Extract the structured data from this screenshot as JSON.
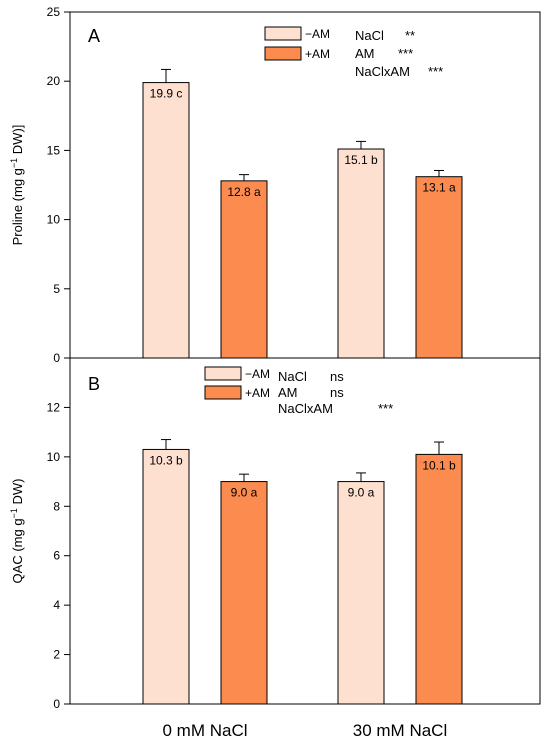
{
  "colors": {
    "minus_am": "#fde0d0",
    "plus_am": "#fb8b4f",
    "stroke": "#000000"
  },
  "chart_data": [
    {
      "type": "bar",
      "panel_label": "A",
      "ylabel_main": "Proline (mg g",
      "ylabel_sup": "−1",
      "ylabel_tail": " DW)]",
      "ylim": [
        0,
        25
      ],
      "yticks": [
        "0",
        "5",
        "10",
        "15",
        "20",
        "25"
      ],
      "ytick_values": [
        0,
        5,
        10,
        15,
        20,
        25
      ],
      "categories": [
        "0 mM NaCl",
        "30 mM NaCl"
      ],
      "series": [
        {
          "name": "−AM",
          "color_key": "minus_am",
          "values": [
            19.9,
            15.1
          ],
          "errors": [
            0.95,
            0.55
          ],
          "labels": [
            "19.9 c",
            "15.1 b"
          ]
        },
        {
          "name": "+AM",
          "color_key": "plus_am",
          "values": [
            12.8,
            13.1
          ],
          "errors": [
            0.45,
            0.45
          ],
          "labels": [
            "12.8 a",
            "13.1 a"
          ]
        }
      ],
      "stats": [
        {
          "factor": "NaCl",
          "sig": "**"
        },
        {
          "factor": "AM",
          "sig": "***"
        },
        {
          "factor": "NaClxAM",
          "sig": "***"
        }
      ]
    },
    {
      "type": "bar",
      "panel_label": "B",
      "ylabel_main": "QAC (mg g",
      "ylabel_sup": "−1",
      "ylabel_tail": " DW)",
      "ylim": [
        0,
        14
      ],
      "yticks": [
        "0",
        "2",
        "4",
        "6",
        "8",
        "10",
        "12"
      ],
      "ytick_values": [
        0,
        2,
        4,
        6,
        8,
        10,
        12
      ],
      "categories": [
        "0 mM NaCl",
        "30 mM NaCl"
      ],
      "series": [
        {
          "name": "−AM",
          "color_key": "minus_am",
          "values": [
            10.3,
            9.0
          ],
          "errors": [
            0.4,
            0.35
          ],
          "labels": [
            "10.3 b",
            "9.0 a"
          ]
        },
        {
          "name": "+AM",
          "color_key": "plus_am",
          "values": [
            9.0,
            10.1
          ],
          "errors": [
            0.3,
            0.5
          ],
          "labels": [
            "9.0 a",
            "10.1 b"
          ]
        }
      ],
      "stats": [
        {
          "factor": "NaCl",
          "sig": "ns"
        },
        {
          "factor": "AM",
          "sig": "ns"
        },
        {
          "factor": "NaClxAM",
          "sig": "***"
        }
      ]
    }
  ],
  "x_categories": [
    "0 mM NaCl",
    "30 mM NaCl"
  ]
}
